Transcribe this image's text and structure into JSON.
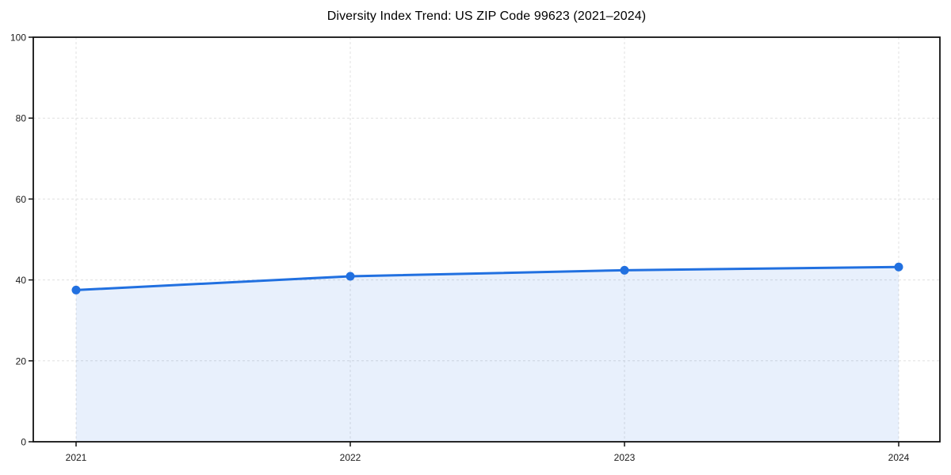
{
  "chart": {
    "title": "Diversity Index Trend: US ZIP Code 99623 (2021–2024)"
  },
  "chart_data": {
    "type": "line",
    "title": "Diversity Index Trend: US ZIP Code 99623 (2021–2024)",
    "categories": [
      "2021",
      "2022",
      "2023",
      "2024"
    ],
    "series": [
      {
        "name": "Diversity Index",
        "values": [
          37.5,
          40.9,
          42.4,
          43.2
        ]
      }
    ],
    "xlabel": "",
    "ylabel": "",
    "ylim": [
      0,
      100
    ],
    "yticks": [
      0,
      20,
      40,
      60,
      80,
      100
    ],
    "grid": true,
    "grid_style": "dashed",
    "legend_position": "none",
    "area_fill": true,
    "marker": "circle",
    "colors": {
      "line": "#2170e0",
      "marker": "#2170e0",
      "fill": "#2170e0",
      "fill_opacity": 0.1,
      "gridline": "#e0e0e0",
      "axis": "#111111",
      "tick_label": "#1a1a1a",
      "title": "#000000",
      "background": "#ffffff"
    }
  }
}
